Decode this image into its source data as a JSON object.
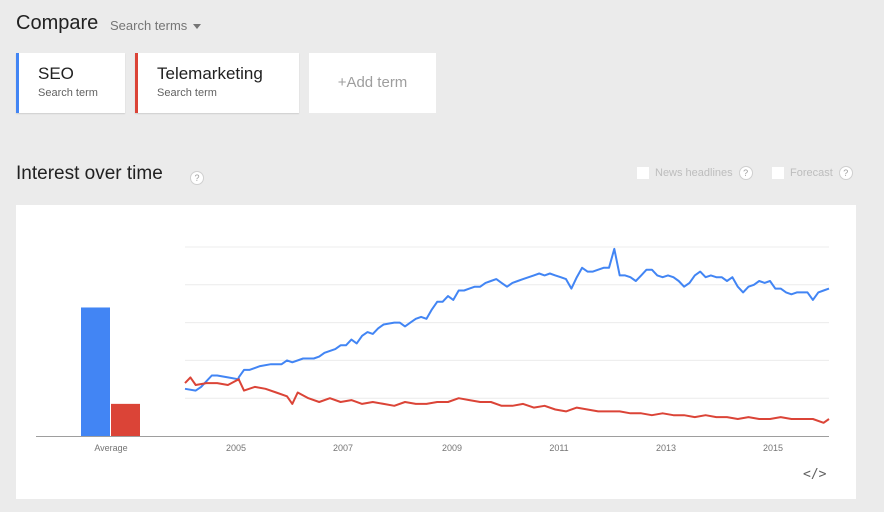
{
  "header": {
    "title": "Compare",
    "mode_label": "Search terms"
  },
  "terms": [
    {
      "name": "SEO",
      "subtitle": "Search term",
      "color": "#4285f4"
    },
    {
      "name": "Telemarketing",
      "subtitle": "Search term",
      "color": "#db4437"
    }
  ],
  "add_term_label": "+Add term",
  "section": {
    "title": "Interest over time",
    "help": "?",
    "options": [
      {
        "label": "News headlines",
        "checked": false,
        "help": "?"
      },
      {
        "label": "Forecast",
        "checked": false,
        "help": "?"
      }
    ]
  },
  "embed_label": "</>",
  "chart_data": [
    {
      "type": "bar",
      "title": "Average",
      "categories": [
        "Average"
      ],
      "series": [
        {
          "name": "SEO",
          "color": "#4285f4",
          "values": [
            68
          ]
        },
        {
          "name": "Telemarketing",
          "color": "#db4437",
          "values": [
            17
          ]
        }
      ],
      "xlabel": "Average",
      "ylim": [
        0,
        100
      ]
    },
    {
      "type": "line",
      "title": "Interest over time",
      "x_tick_labels": [
        "2005",
        "2007",
        "2009",
        "2011",
        "2013",
        "2015"
      ],
      "x_range": [
        "2004-01",
        "2016-01"
      ],
      "ylim": [
        0,
        100
      ],
      "grid": true,
      "gridlines": [
        20,
        40,
        60,
        80,
        100
      ],
      "series": [
        {
          "name": "SEO",
          "color": "#4285f4",
          "x": [
            2004.0,
            2004.2,
            2004.3,
            2004.5,
            2004.6,
            2004.8,
            2005.0,
            2005.0,
            2005.1,
            2005.2,
            2005.4,
            2005.6,
            2005.8,
            2005.9,
            2006.0,
            2006.2,
            2006.4,
            2006.5,
            2006.6,
            2006.7,
            2006.8,
            2006.9,
            2007.0,
            2007.1,
            2007.2,
            2007.3,
            2007.4,
            2007.5,
            2007.6,
            2007.7,
            2007.9,
            2008.0,
            2008.1,
            2008.2,
            2008.3,
            2008.4,
            2008.5,
            2008.6,
            2008.7,
            2008.8,
            2008.9,
            2009.0,
            2009.1,
            2009.2,
            2009.3,
            2009.4,
            2009.5,
            2009.6,
            2009.7,
            2009.8,
            2009.9,
            2010.0,
            2010.1,
            2010.2,
            2010.3,
            2010.5,
            2010.6,
            2010.7,
            2010.8,
            2010.9,
            2011.0,
            2011.1,
            2011.2,
            2011.3,
            2011.4,
            2011.5,
            2011.6,
            2011.7,
            2011.8,
            2011.9,
            2012.0,
            2012.1,
            2012.2,
            2012.3,
            2012.4,
            2012.5,
            2012.6,
            2012.7,
            2012.8,
            2012.9,
            2013.0,
            2013.1,
            2013.2,
            2013.3,
            2013.4,
            2013.5,
            2013.6,
            2013.7,
            2013.8,
            2013.9,
            2014.0,
            2014.1,
            2014.2,
            2014.3,
            2014.4,
            2014.5,
            2014.6,
            2014.7,
            2014.8,
            2014.9,
            2015.0,
            2015.1,
            2015.2,
            2015.3,
            2015.4,
            2015.5,
            2015.6,
            2015.7,
            2015.8,
            2015.9,
            2016.0
          ],
          "values": [
            25,
            24,
            26,
            32,
            32,
            31,
            30,
            31,
            35,
            35,
            37,
            38,
            38,
            40,
            39,
            41,
            41,
            42,
            44,
            45,
            46,
            48,
            48,
            51,
            49,
            53,
            55,
            54,
            57,
            59,
            60,
            60,
            58,
            60,
            62,
            63,
            62,
            67,
            71,
            71,
            74,
            72,
            77,
            77,
            78,
            79,
            79,
            81,
            82,
            83,
            81,
            79,
            81,
            82,
            83,
            85,
            86,
            85,
            86,
            85,
            84,
            83,
            78,
            84,
            89,
            87,
            87,
            88,
            89,
            89,
            99,
            85,
            85,
            84,
            82,
            85,
            88,
            88,
            85,
            84,
            85,
            84,
            82,
            79,
            81,
            85,
            87,
            84,
            85,
            84,
            84,
            82,
            84,
            79,
            76,
            79,
            80,
            82,
            81,
            82,
            78,
            78,
            76,
            75,
            76,
            76,
            76,
            72,
            76,
            77,
            78
          ]
        },
        {
          "name": "Telemarketing",
          "color": "#db4437",
          "x": [
            2004.0,
            2004.1,
            2004.2,
            2004.4,
            2004.6,
            2004.8,
            2005.0,
            2005.1,
            2005.3,
            2005.5,
            2005.7,
            2005.9,
            2006.0,
            2006.1,
            2006.3,
            2006.5,
            2006.7,
            2006.9,
            2007.1,
            2007.3,
            2007.5,
            2007.7,
            2007.9,
            2008.1,
            2008.3,
            2008.5,
            2008.7,
            2008.9,
            2009.1,
            2009.3,
            2009.5,
            2009.7,
            2009.9,
            2010.1,
            2010.3,
            2010.5,
            2010.7,
            2010.9,
            2011.1,
            2011.3,
            2011.5,
            2011.7,
            2011.9,
            2012.1,
            2012.3,
            2012.5,
            2012.7,
            2012.9,
            2013.1,
            2013.3,
            2013.5,
            2013.7,
            2013.9,
            2014.1,
            2014.3,
            2014.5,
            2014.7,
            2014.9,
            2015.1,
            2015.3,
            2015.5,
            2015.7,
            2015.9,
            2016.0
          ],
          "values": [
            28,
            31,
            27,
            28,
            28,
            27,
            30,
            24,
            26,
            25,
            23,
            21,
            17,
            23,
            20,
            18,
            20,
            18,
            19,
            17,
            18,
            17,
            16,
            18,
            17,
            17,
            18,
            18,
            20,
            19,
            18,
            18,
            16,
            16,
            17,
            15,
            16,
            14,
            13,
            15,
            14,
            13,
            13,
            13,
            12,
            12,
            11,
            12,
            11,
            11,
            10,
            11,
            10,
            10,
            9,
            10,
            9,
            9,
            10,
            9,
            9,
            9,
            7,
            9
          ]
        }
      ]
    }
  ]
}
